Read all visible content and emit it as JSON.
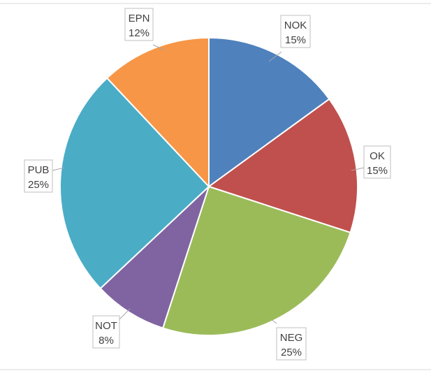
{
  "chart_data": {
    "type": "pie",
    "title": "",
    "legend": "none",
    "slices": [
      {
        "category": "NOK",
        "percent_label": "15%",
        "value": 15,
        "color": "#4f81bd"
      },
      {
        "category": "OK",
        "percent_label": "15%",
        "value": 15,
        "color": "#c0504d"
      },
      {
        "category": "NEG",
        "percent_label": "25%",
        "value": 25,
        "color": "#9bbb59"
      },
      {
        "category": "NOT",
        "percent_label": "8%",
        "value": 8,
        "color": "#8064a2"
      },
      {
        "category": "PUB",
        "percent_label": "25%",
        "value": 25,
        "color": "#4bacc6"
      },
      {
        "category": "EPN",
        "percent_label": "12%",
        "value": 12,
        "color": "#f79646"
      }
    ]
  }
}
